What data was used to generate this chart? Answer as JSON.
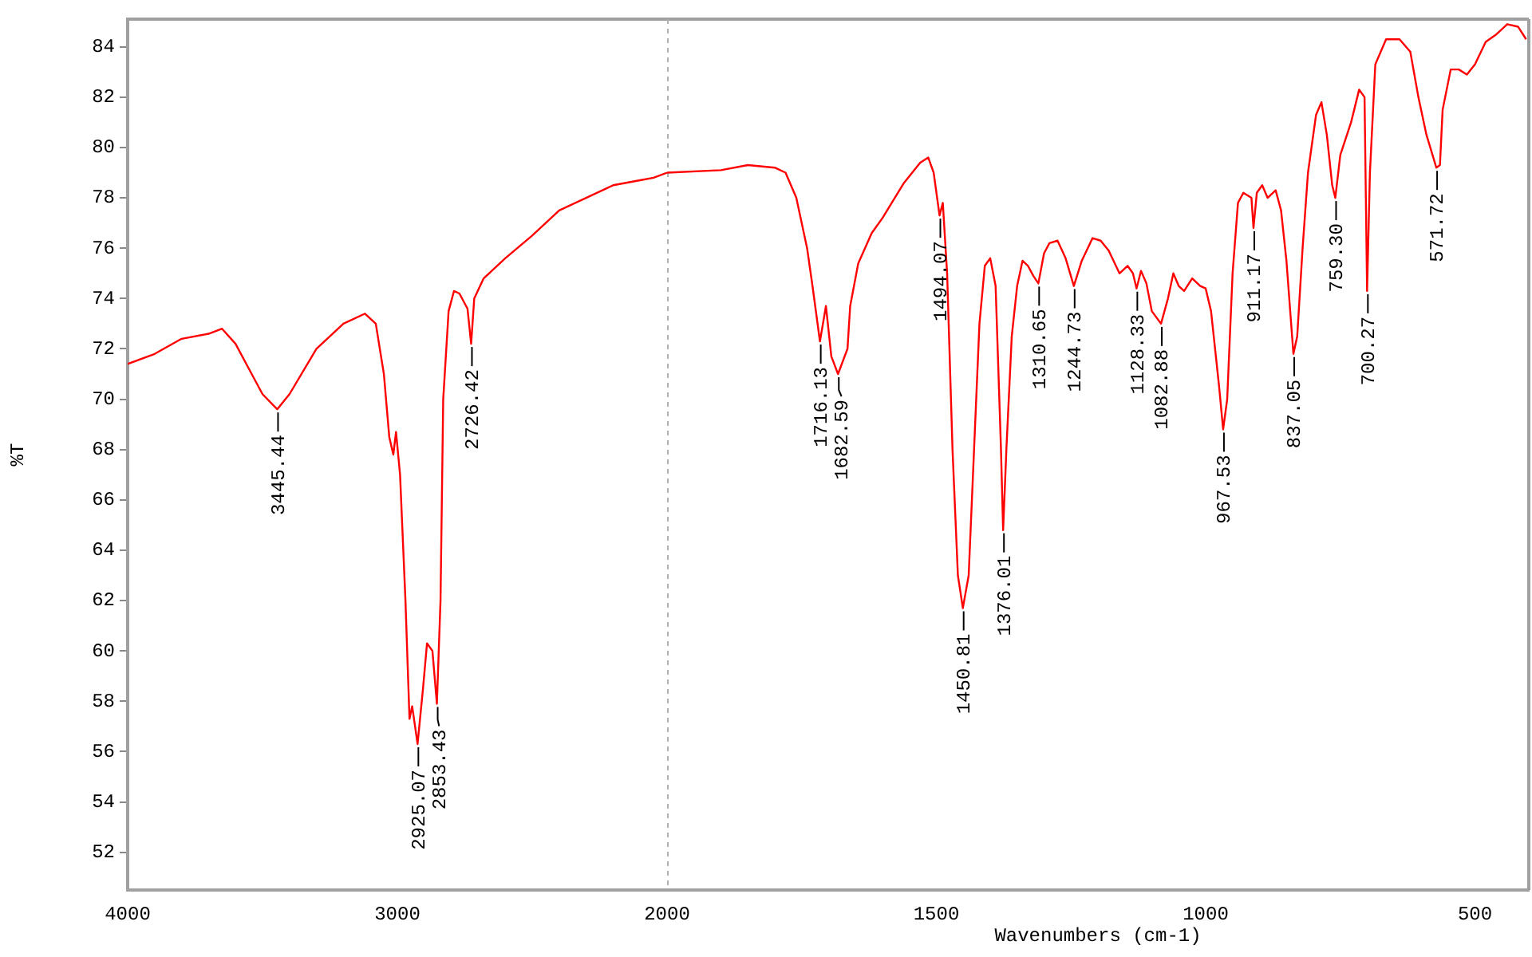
{
  "chart_data": [
    {
      "type": "line",
      "ylabel": "%T",
      "xlim": [
        4000,
        2000
      ],
      "xticks": [
        4000,
        3000,
        2000
      ],
      "ylim": [
        50.5,
        85.1
      ],
      "yticks": [
        52,
        54,
        56,
        58,
        60,
        62,
        64,
        66,
        68,
        70,
        72,
        74,
        76,
        78,
        80,
        82,
        84
      ],
      "grid": false,
      "legend": false,
      "marker": "none",
      "line_style": "solid",
      "series": [
        {
          "color": "#ff0000",
          "x": [
            4000,
            3900,
            3800,
            3700,
            3650,
            3600,
            3550,
            3500,
            3445.44,
            3400,
            3300,
            3200,
            3120,
            3080,
            3050,
            3030,
            3015,
            3005,
            2990,
            2970,
            2955,
            2945,
            2925.07,
            2905,
            2890,
            2870,
            2853.43,
            2840,
            2830,
            2810,
            2790,
            2770,
            2740,
            2726.42,
            2715,
            2680,
            2600,
            2500,
            2400,
            2300,
            2200,
            2100,
            2050,
            2000
          ],
          "values": [
            71.4,
            71.8,
            72.4,
            72.6,
            72.8,
            72.2,
            71.2,
            70.2,
            69.6,
            70.2,
            72.0,
            73.0,
            73.4,
            73.0,
            71.0,
            68.5,
            67.8,
            68.7,
            67.0,
            62.0,
            57.3,
            57.8,
            56.3,
            58.5,
            60.3,
            60.0,
            57.9,
            62.0,
            70.0,
            73.5,
            74.3,
            74.2,
            73.6,
            72.2,
            74.0,
            74.8,
            75.6,
            76.5,
            77.5,
            78.0,
            78.5,
            78.7,
            78.8,
            79.0
          ]
        }
      ],
      "annotations": [
        {
          "text": "3445.44",
          "x": 3445.44,
          "y": 69.6
        },
        {
          "text": "2925.07",
          "x": 2925.07,
          "y": 56.3
        },
        {
          "text": "2853.43",
          "x": 2853.43,
          "y": 57.9
        },
        {
          "text": "2726.42",
          "x": 2726.42,
          "y": 72.2
        }
      ]
    },
    {
      "type": "line",
      "xlabel": "Wavenumbers (cm-1)",
      "xlim": [
        2000,
        400
      ],
      "xticks": [
        1500,
        1000,
        500
      ],
      "ylim": [
        50.5,
        85.1
      ],
      "tick_labels": "x",
      "grid": false,
      "legend": false,
      "marker": "none",
      "line_style": "solid",
      "series": [
        {
          "color": "#ff0000",
          "x": [
            2000,
            1900,
            1850,
            1800,
            1780,
            1760,
            1740,
            1730,
            1716.13,
            1705,
            1695,
            1682.59,
            1665,
            1660,
            1645,
            1620,
            1600,
            1560,
            1530,
            1515,
            1505,
            1494.07,
            1488,
            1480,
            1470,
            1460,
            1450.81,
            1440,
            1430,
            1420,
            1410,
            1400,
            1390,
            1380,
            1376.01,
            1370,
            1360,
            1350,
            1340,
            1330,
            1320,
            1310.65,
            1300,
            1290,
            1275,
            1260,
            1244.73,
            1230,
            1210,
            1195,
            1180,
            1160,
            1145,
            1135,
            1128.33,
            1120,
            1110,
            1100,
            1082.88,
            1070,
            1060,
            1050,
            1040,
            1025,
            1010,
            1000,
            990,
            975,
            967.53,
            960,
            950,
            940,
            930,
            915,
            911.17,
            905,
            895,
            885,
            870,
            860,
            850,
            837.05,
            830,
            820,
            810,
            795,
            785,
            775,
            765,
            759.3,
            750,
            730,
            715,
            705,
            700.27,
            695,
            685,
            665,
            640,
            620,
            605,
            590,
            571.72,
            565,
            560,
            545,
            530,
            515,
            500,
            480,
            460,
            440,
            420,
            405
          ],
          "values": [
            79.0,
            79.1,
            79.3,
            79.2,
            79.0,
            78.0,
            76.0,
            74.5,
            72.3,
            73.7,
            71.7,
            71.0,
            72.0,
            73.7,
            75.4,
            76.6,
            77.2,
            78.6,
            79.4,
            79.6,
            79.0,
            77.3,
            77.8,
            75.0,
            68.0,
            63.0,
            61.7,
            63.0,
            68.0,
            73.0,
            75.3,
            75.6,
            74.5,
            68.0,
            64.8,
            68.0,
            72.5,
            74.5,
            75.5,
            75.3,
            74.9,
            74.6,
            75.8,
            76.2,
            76.3,
            75.6,
            74.5,
            75.5,
            76.4,
            76.3,
            75.9,
            75.0,
            75.3,
            75.0,
            74.4,
            75.1,
            74.6,
            73.5,
            73.0,
            74.0,
            75.0,
            74.5,
            74.3,
            74.8,
            74.5,
            74.4,
            73.5,
            70.5,
            68.8,
            70.0,
            75.0,
            77.8,
            78.2,
            78.0,
            76.8,
            78.2,
            78.5,
            78.0,
            78.3,
            77.5,
            75.5,
            71.8,
            72.5,
            76.0,
            79.0,
            81.3,
            81.8,
            80.5,
            78.5,
            78.0,
            79.7,
            81.0,
            82.3,
            82.0,
            74.3,
            79.0,
            83.3,
            84.3,
            84.3,
            83.8,
            82.0,
            80.5,
            79.2,
            79.3,
            81.5,
            83.1,
            83.1,
            82.9,
            83.3,
            84.2,
            84.5,
            84.9,
            84.8,
            84.3
          ]
        }
      ],
      "annotations": [
        {
          "text": "1716.13",
          "x": 1716.13,
          "y": 72.3
        },
        {
          "text": "1682.59",
          "x": 1682.59,
          "y": 71.0
        },
        {
          "text": "1494.07",
          "x": 1494.07,
          "y": 77.3
        },
        {
          "text": "1450.81",
          "x": 1450.81,
          "y": 61.7
        },
        {
          "text": "1376.01",
          "x": 1376.01,
          "y": 64.8
        },
        {
          "text": "1310.65",
          "x": 1310.65,
          "y": 74.6
        },
        {
          "text": "1244.73",
          "x": 1244.73,
          "y": 74.5
        },
        {
          "text": "1128.33",
          "x": 1128.33,
          "y": 74.4
        },
        {
          "text": "1082.88",
          "x": 1082.88,
          "y": 73.0
        },
        {
          "text": "967.53",
          "x": 967.53,
          "y": 68.8
        },
        {
          "text": "911.17",
          "x": 911.17,
          "y": 76.8
        },
        {
          "text": "837.05",
          "x": 837.05,
          "y": 71.8
        },
        {
          "text": "759.30",
          "x": 759.3,
          "y": 78.0
        },
        {
          "text": "700.27",
          "x": 700.27,
          "y": 74.3
        },
        {
          "text": "571.72",
          "x": 571.72,
          "y": 79.2
        }
      ]
    }
  ]
}
